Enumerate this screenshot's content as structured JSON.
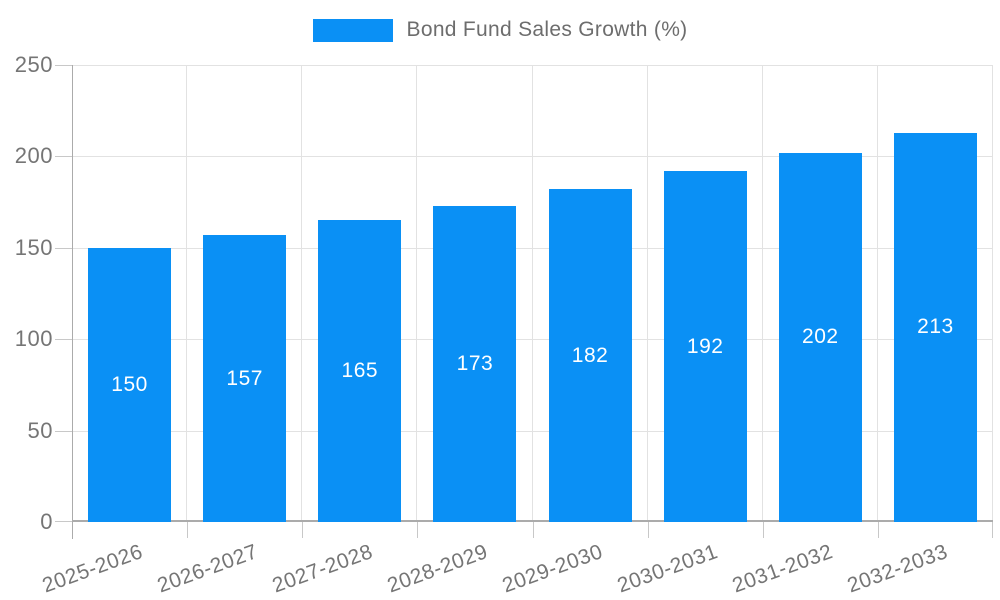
{
  "legend": {
    "label": "Bond Fund Sales Growth (%)"
  },
  "colors": {
    "bar": "#0a90f5",
    "bar_label": "#ffffff",
    "axis_text": "#757575",
    "legend_text": "#6d6d6d",
    "grid": "#e2e2e2",
    "tick": "#c8c8c8",
    "axis_line": "#ababab",
    "background": "#ffffff"
  },
  "chart_data": {
    "type": "bar",
    "title": "",
    "legend_label": "Bond Fund Sales Growth (%)",
    "legend_position": "top-center",
    "categories": [
      "2025-2026",
      "2026-2027",
      "2027-2028",
      "2028-2029",
      "2029-2030",
      "2030-2031",
      "2031-2032",
      "2032-2033"
    ],
    "series": [
      {
        "name": "Bond Fund Sales Growth (%)",
        "values": [
          150,
          157,
          165,
          173,
          182,
          192,
          202,
          213
        ]
      }
    ],
    "value_labels": "inside-center",
    "xlabel": "",
    "ylabel": "",
    "ylim": [
      0,
      250
    ],
    "yticks": [
      0,
      50,
      100,
      150,
      200,
      250
    ],
    "grid": true,
    "x_label_rotation_deg": -20
  }
}
